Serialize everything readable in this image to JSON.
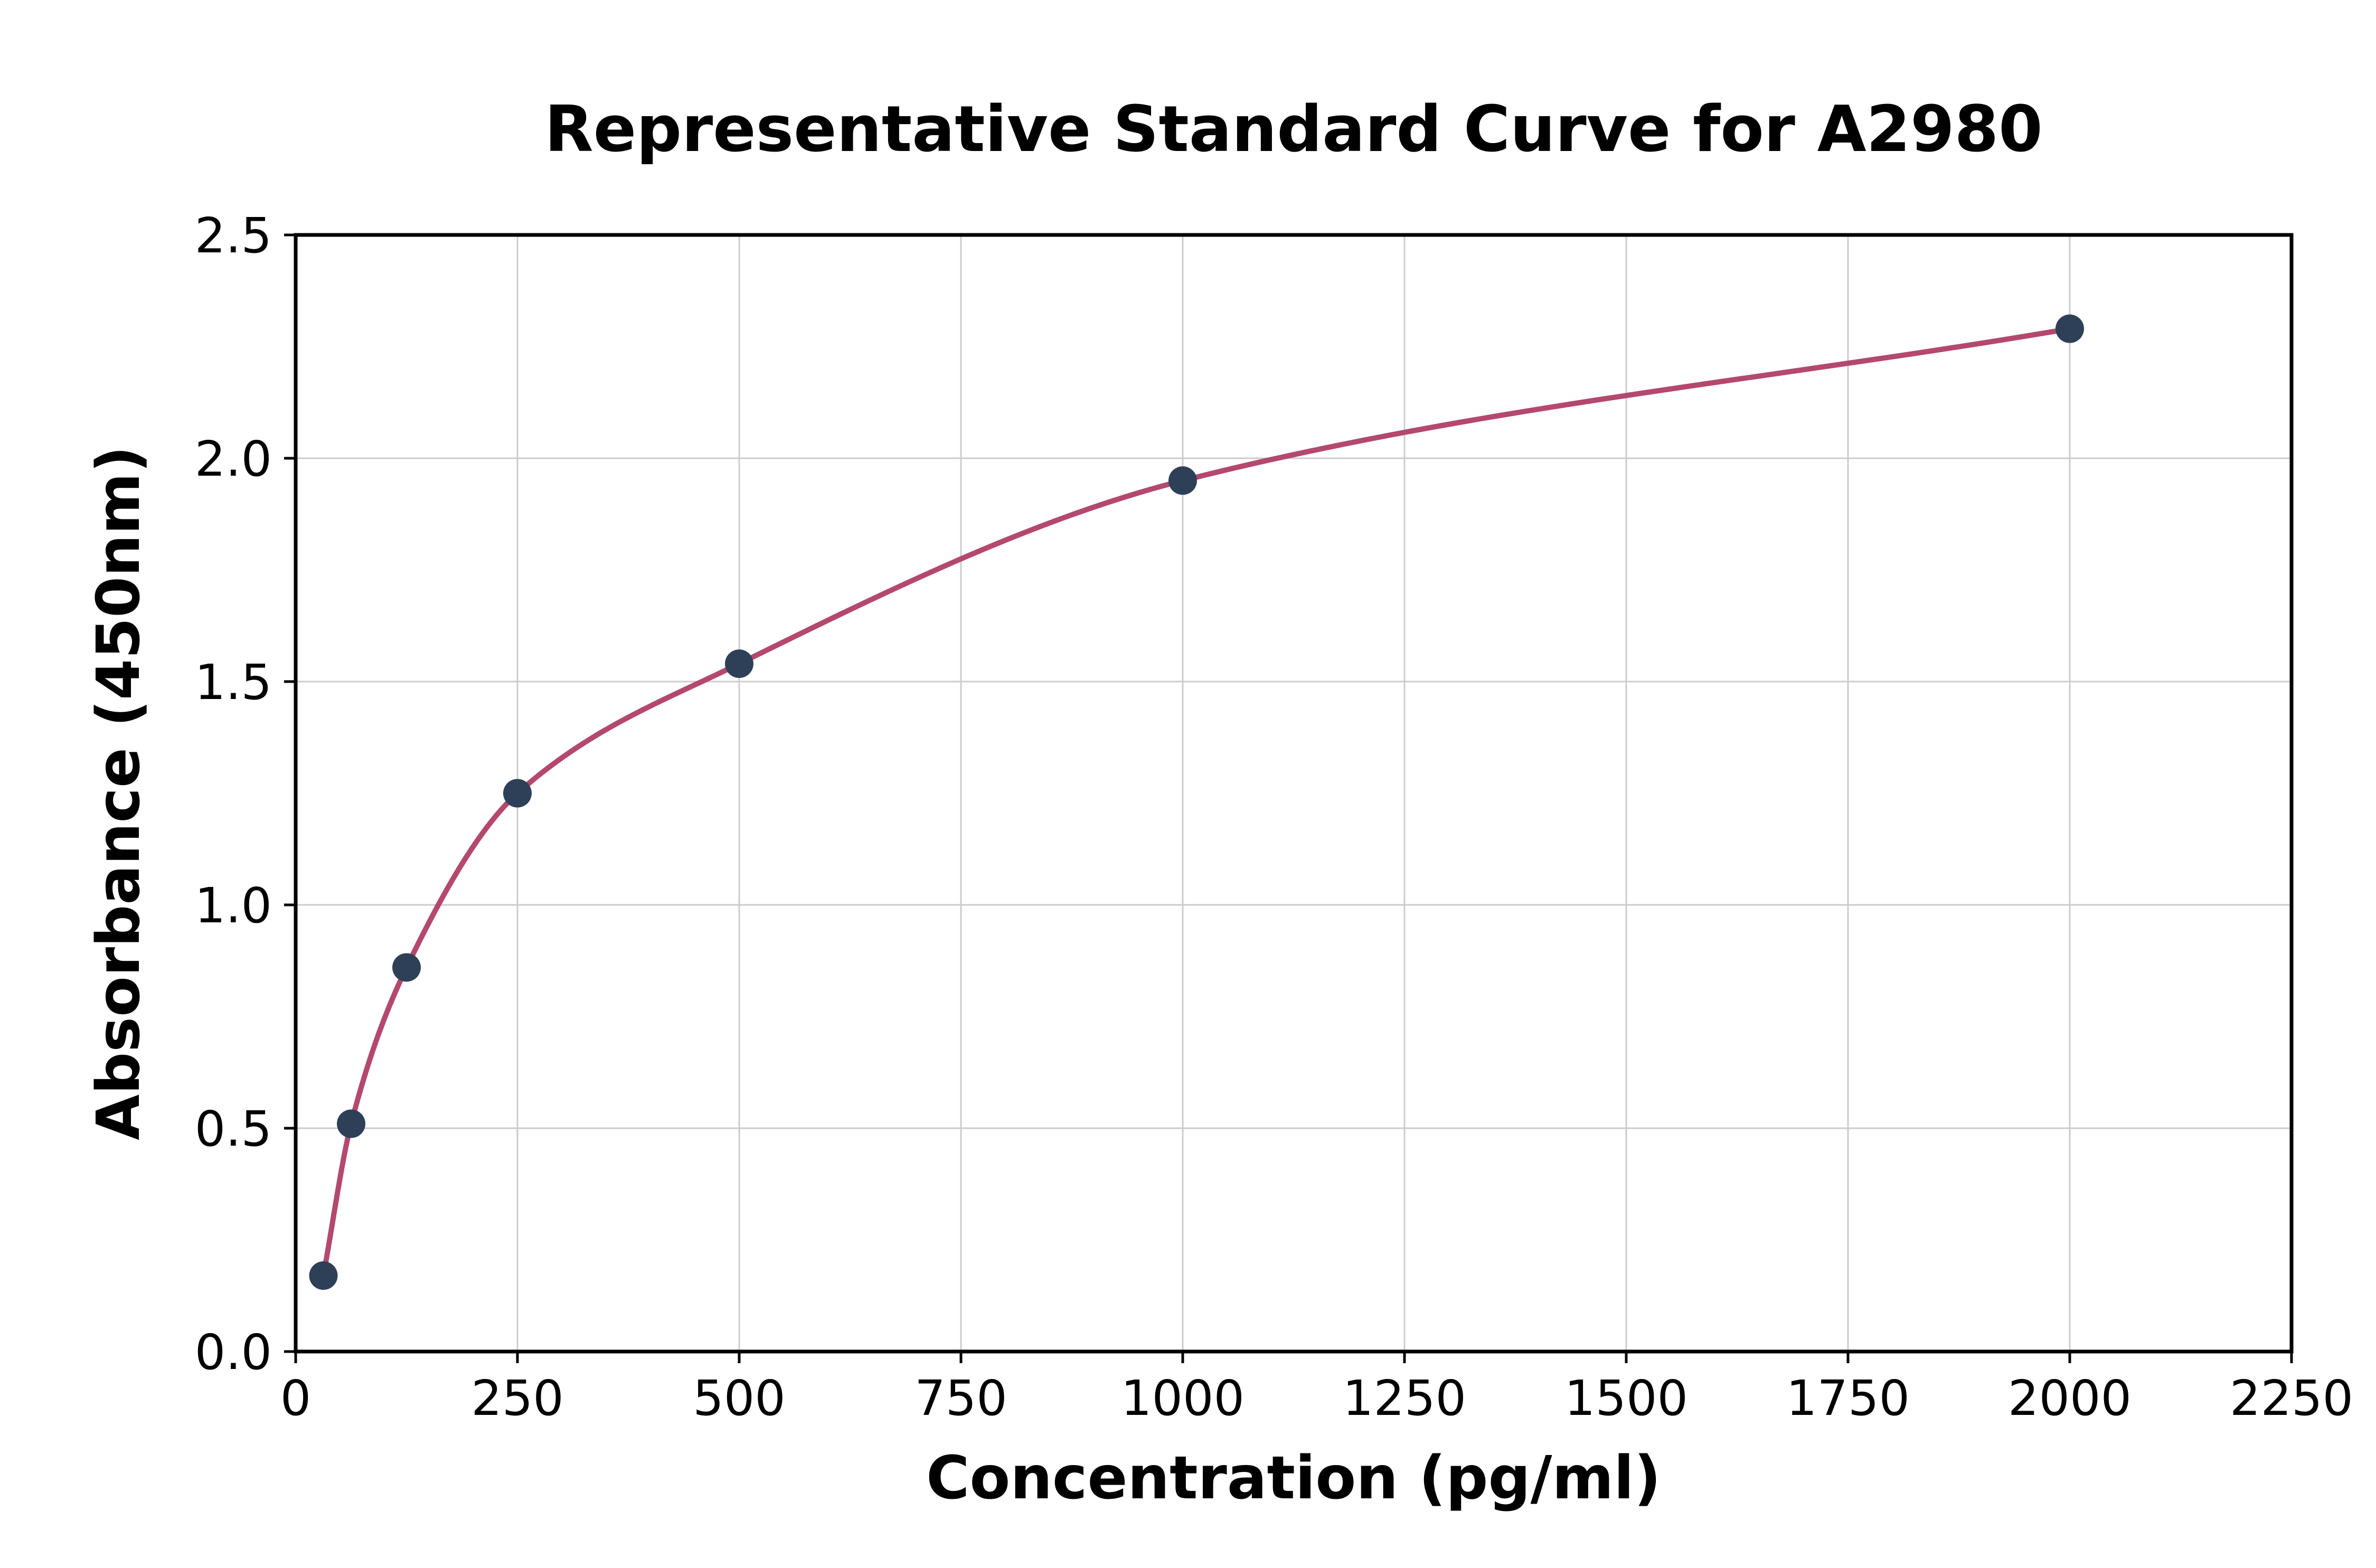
{
  "chart_data": {
    "type": "scatter",
    "title": "Representative Standard Curve for A2980",
    "xlabel": "Concentration (pg/ml)",
    "ylabel": "Absorbance (450nm)",
    "xlim": [
      0,
      2250
    ],
    "ylim": [
      0,
      2.5
    ],
    "x_ticks": [
      0,
      250,
      500,
      750,
      1000,
      1250,
      1500,
      1750,
      2000,
      2250
    ],
    "x_tick_labels": [
      "0",
      "250",
      "500",
      "750",
      "1000",
      "1250",
      "1500",
      "1750",
      "2000",
      "2250"
    ],
    "y_ticks": [
      0,
      0.5,
      1,
      1.5,
      2,
      2.5
    ],
    "y_tick_labels": [
      "0.0",
      "0.5",
      "1.0",
      "1.5",
      "2.0",
      "2.5"
    ],
    "grid": true,
    "legend_position": "none",
    "smooth_fit_curve": true,
    "points": {
      "x": [
        31.25,
        62.5,
        125,
        250,
        500,
        1000,
        2000
      ],
      "y": [
        0.17,
        0.51,
        0.86,
        1.25,
        1.54,
        1.95,
        2.29
      ]
    },
    "curve_color": "#b4486e",
    "point_color": "#2e4057",
    "grid_color": "#cccccc",
    "spine_color": "#000000",
    "background": "#ffffff"
  }
}
